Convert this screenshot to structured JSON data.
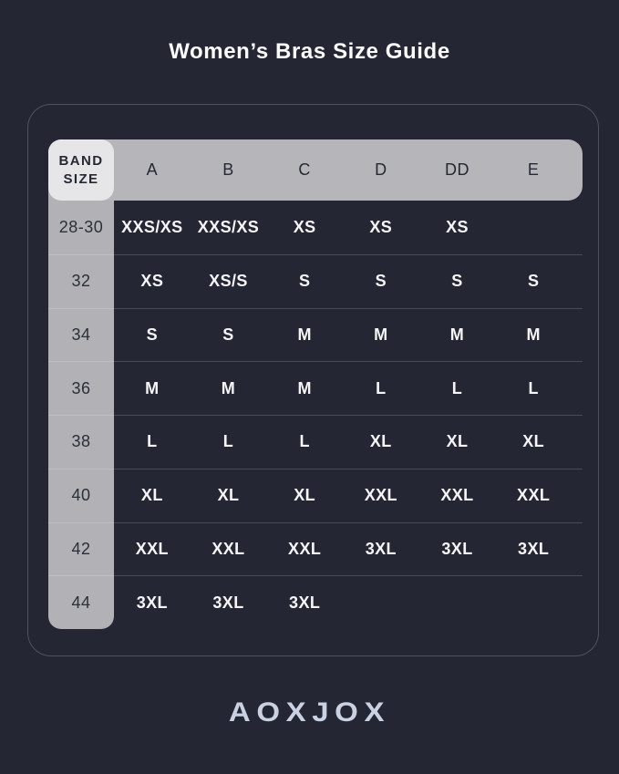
{
  "title": "Women’s Bras Size Guide",
  "brand_logo": "AOXJOX",
  "chart_data": {
    "type": "table",
    "title": "Women’s Bras Size Guide",
    "corner_header": "BAND SIZE",
    "columns": [
      "A",
      "B",
      "C",
      "D",
      "DD",
      "E"
    ],
    "rows": [
      {
        "band": "28-30",
        "cups": [
          "XXS/XS",
          "XXS/XS",
          "XS",
          "XS",
          "XS",
          ""
        ]
      },
      {
        "band": "32",
        "cups": [
          "XS",
          "XS/S",
          "S",
          "S",
          "S",
          "S"
        ]
      },
      {
        "band": "34",
        "cups": [
          "S",
          "S",
          "M",
          "M",
          "M",
          "M"
        ]
      },
      {
        "band": "36",
        "cups": [
          "M",
          "M",
          "M",
          "L",
          "L",
          "L"
        ]
      },
      {
        "band": "38",
        "cups": [
          "L",
          "L",
          "L",
          "XL",
          "XL",
          "XL"
        ]
      },
      {
        "band": "40",
        "cups": [
          "XL",
          "XL",
          "XL",
          "XXL",
          "XXL",
          "XXL"
        ]
      },
      {
        "band": "42",
        "cups": [
          "XXL",
          "XXL",
          "XXL",
          "3XL",
          "3XL",
          "3XL"
        ]
      },
      {
        "band": "44",
        "cups": [
          "3XL",
          "3XL",
          "3XL",
          "",
          "",
          ""
        ]
      }
    ],
    "layout": {
      "grid": "horizontal row dividers only",
      "legend": "none"
    }
  },
  "colors": {
    "background": "#242733",
    "panel_border": "#4f5260",
    "header_bg": "#b6b6ba",
    "band_column_bg": "#b1b1b6",
    "corner_cell_bg": "#e6e6e9",
    "dark_text": "#262833",
    "value_text": "#f5f5f7",
    "title_text": "#fafafb",
    "logo_text": "#c9d1e3",
    "row_divider": "rgba(255,255,255,0.17)"
  }
}
